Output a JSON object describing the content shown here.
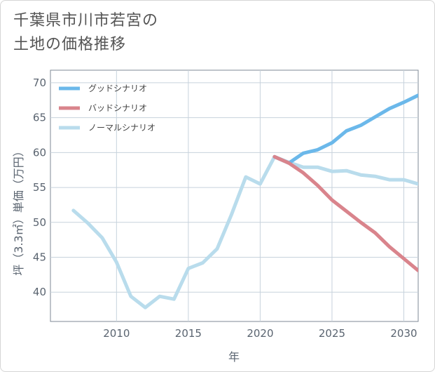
{
  "title_lines": [
    "千葉県市川市若宮の",
    "土地の価格推移"
  ],
  "chart_data": {
    "type": "line",
    "xlabel": "年",
    "ylabel": "坪（3.3㎡）単価（万円）",
    "xlim": [
      2005.4,
      2031
    ],
    "ylim": [
      35.8,
      71.8
    ],
    "xticks": [
      2010,
      2015,
      2020,
      2025,
      2030
    ],
    "yticks": [
      40,
      45,
      50,
      55,
      60,
      65,
      70
    ],
    "grid": true,
    "legend_position": "top-left",
    "series": [
      {
        "name": "グッドシナリオ",
        "color": "#6bb8ea",
        "x": [
          2021,
          2022,
          2023,
          2024,
          2025,
          2026,
          2027,
          2028,
          2029,
          2030,
          2031
        ],
        "y": [
          59.4,
          58.5,
          59.9,
          60.4,
          61.4,
          63.1,
          63.9,
          65.1,
          66.3,
          67.2,
          68.2
        ]
      },
      {
        "name": "バッドシナリオ",
        "color": "#d9848c",
        "x": [
          2021,
          2022,
          2023,
          2024,
          2025,
          2026,
          2027,
          2028,
          2029,
          2030,
          2031
        ],
        "y": [
          59.4,
          58.5,
          57.1,
          55.3,
          53.2,
          51.6,
          50.0,
          48.5,
          46.5,
          44.8,
          43.1
        ]
      },
      {
        "name": "ノーマルシナリオ",
        "color": "#b9dcec",
        "x": [
          2007,
          2008,
          2009,
          2010,
          2011,
          2012,
          2013,
          2014,
          2015,
          2016,
          2017,
          2018,
          2019,
          2020,
          2021,
          2022,
          2023,
          2024,
          2025,
          2026,
          2027,
          2028,
          2029,
          2030,
          2031
        ],
        "y": [
          51.7,
          49.9,
          47.8,
          44.3,
          39.4,
          37.8,
          39.4,
          39.0,
          43.4,
          44.2,
          46.2,
          51.1,
          56.5,
          55.5,
          59.4,
          58.6,
          57.9,
          57.9,
          57.3,
          57.4,
          56.8,
          56.6,
          56.1,
          56.1,
          55.5
        ]
      }
    ]
  }
}
